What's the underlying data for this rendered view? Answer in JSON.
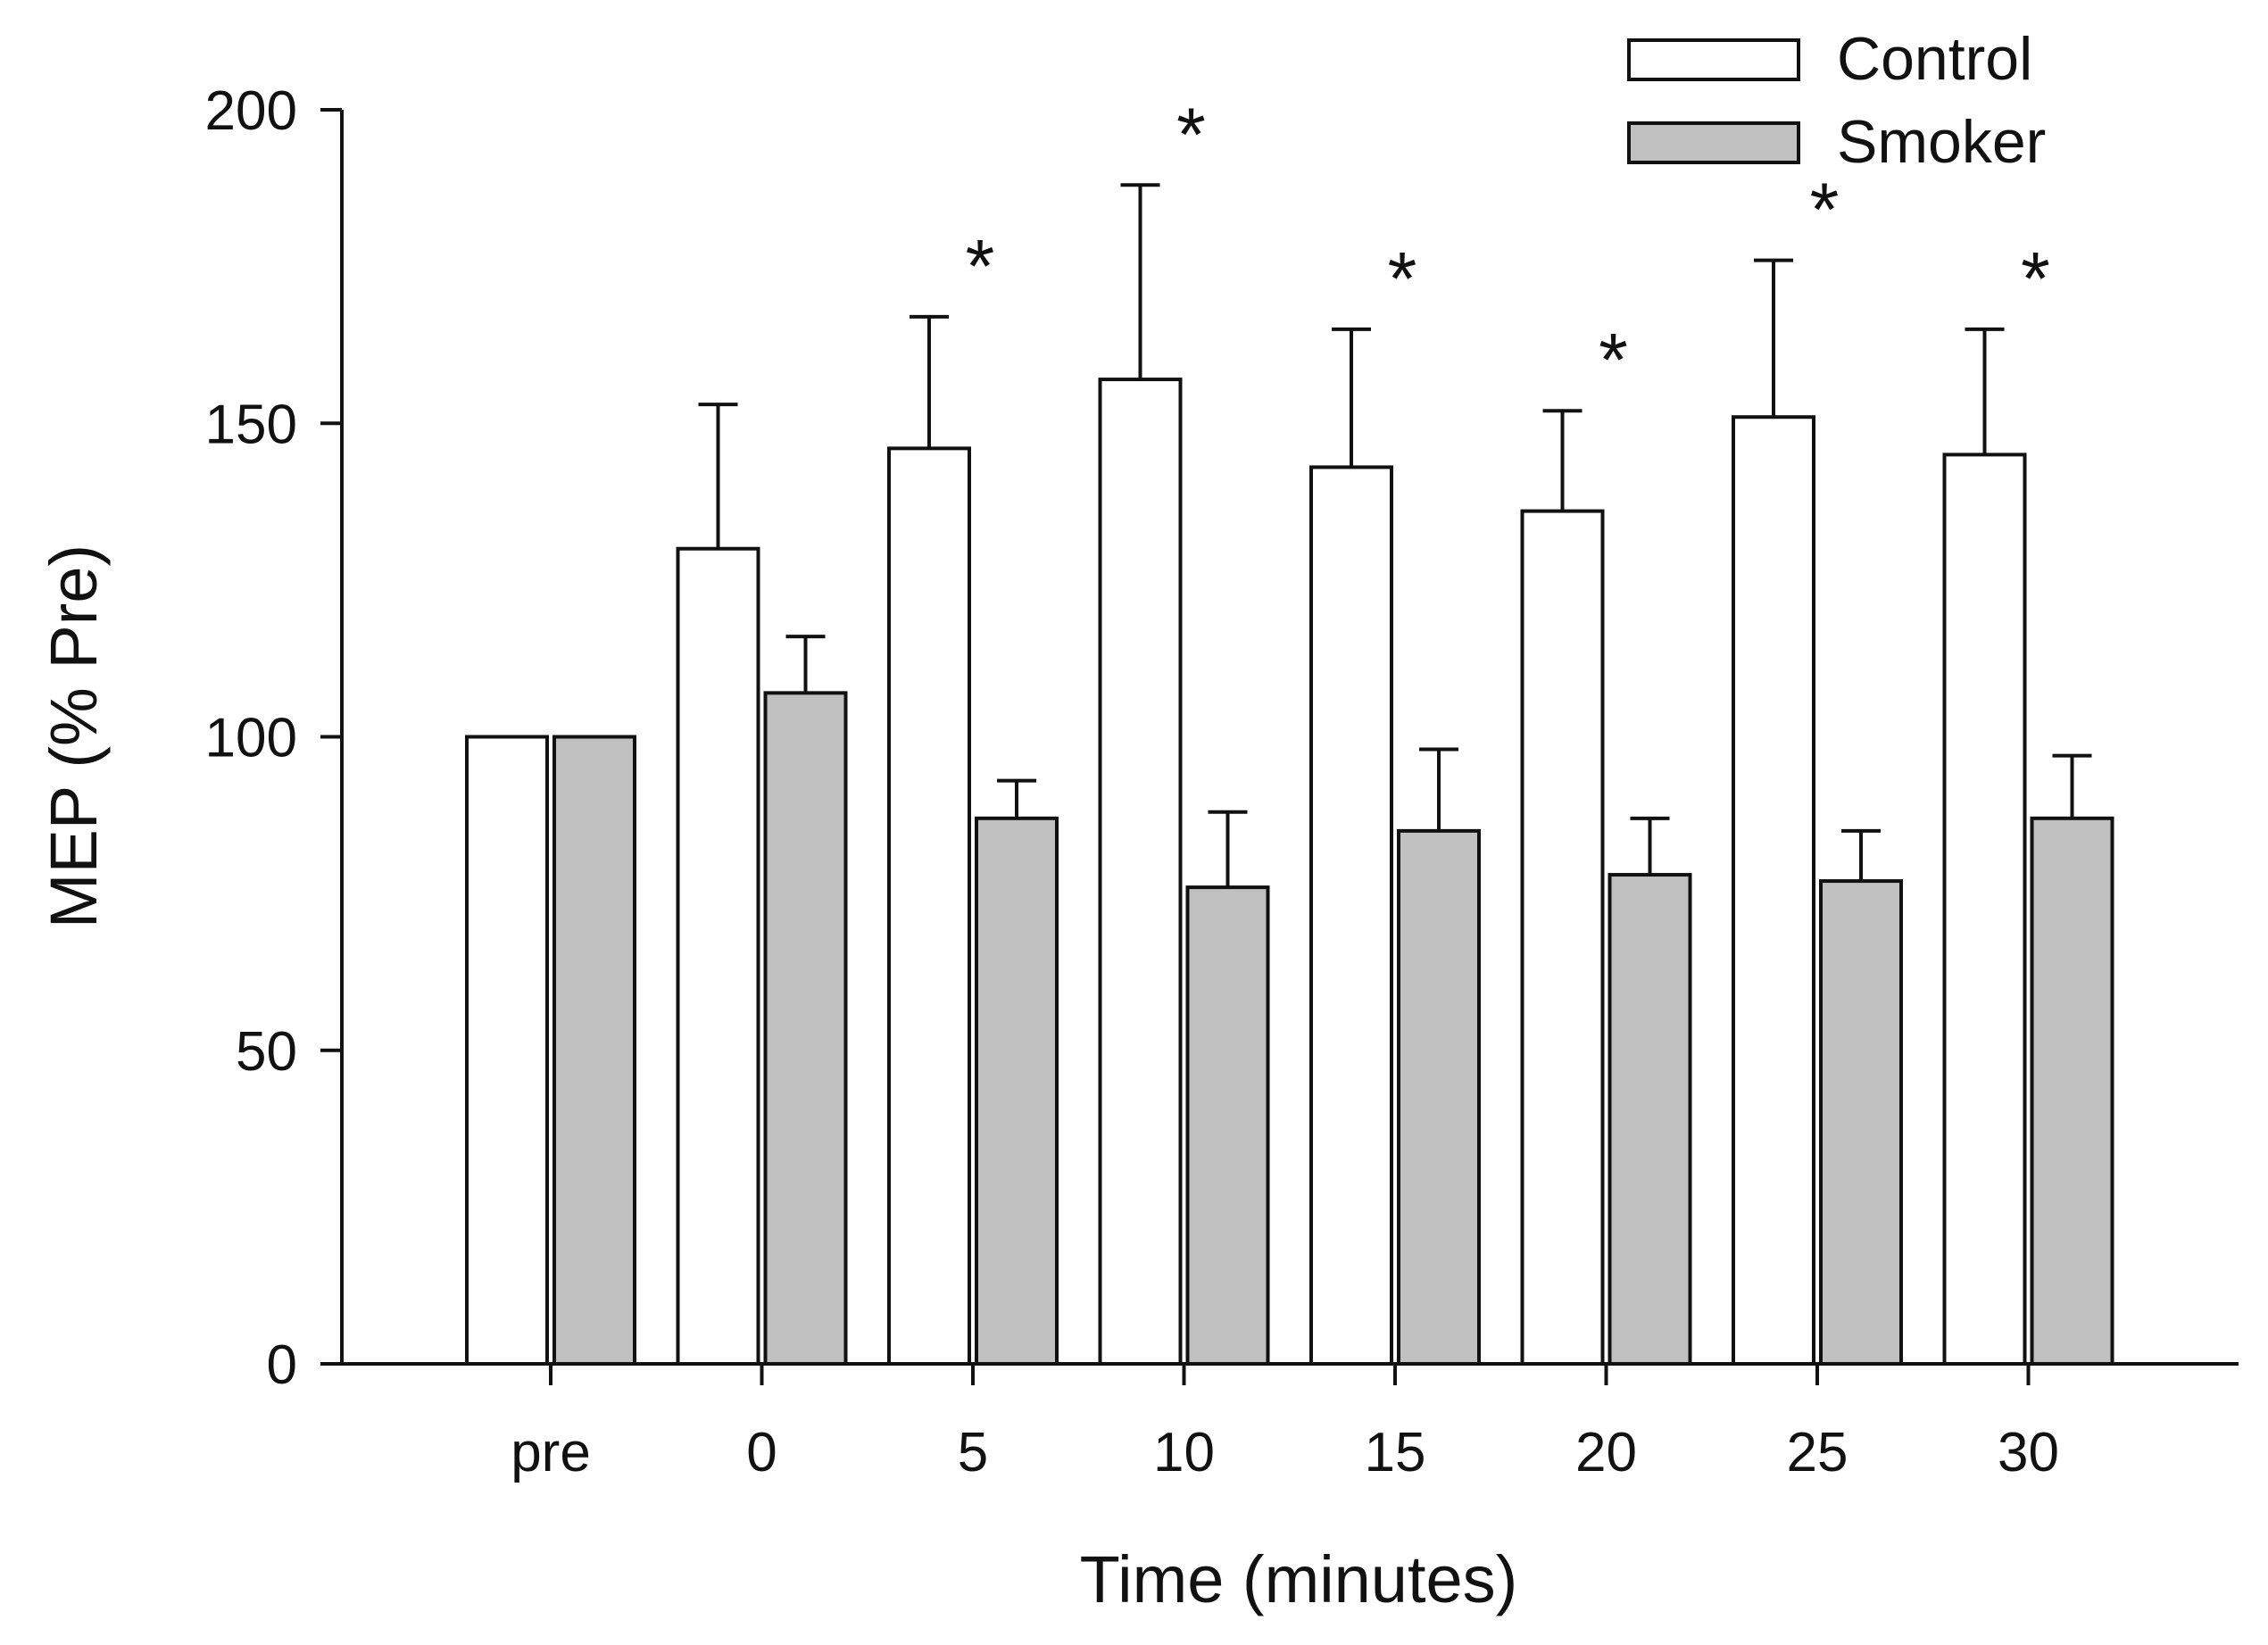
{
  "chart_data": {
    "type": "bar",
    "title": "",
    "xlabel": "Time (minutes)",
    "ylabel": "MEP (% Pre)",
    "ylim": [
      0,
      200
    ],
    "yticks": [
      0,
      50,
      100,
      150,
      200
    ],
    "categories": [
      "pre",
      "0",
      "5",
      "10",
      "15",
      "20",
      "25",
      "30"
    ],
    "series": [
      {
        "name": "Control",
        "color": "#ffffff",
        "values": [
          100,
          130,
          146,
          157,
          143,
          136,
          151,
          145
        ],
        "error_upper": [
          100,
          153,
          167,
          188,
          165,
          152,
          176,
          165
        ]
      },
      {
        "name": "Smoker",
        "color": "#c0c0c0",
        "values": [
          100,
          107,
          87,
          76,
          85,
          78,
          77,
          87
        ],
        "error_upper": [
          100,
          116,
          93,
          88,
          98,
          87,
          85,
          97
        ]
      }
    ],
    "significance": {
      "symbol": "*",
      "categories": [
        "5",
        "10",
        "15",
        "20",
        "25",
        "30"
      ]
    },
    "legend_position": "top-right",
    "grid": false
  }
}
